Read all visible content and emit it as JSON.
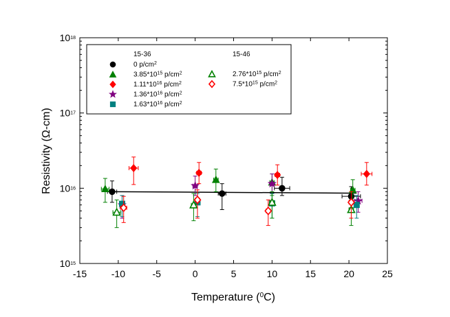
{
  "chart_data": {
    "type": "scatter",
    "xlabel": "Temperature (0C)",
    "xlabel_parts": {
      "pre": "Temperature (",
      "sup": "0",
      "post": "C)"
    },
    "ylabel": "Resistivity (Ω-cm)",
    "xlim": [
      -15,
      25
    ],
    "ylim": [
      1000000000000000.0,
      1e+18
    ],
    "yscale": "log",
    "grid": false,
    "legend_position": "top-left",
    "x_ticks": [
      "-15",
      "-10",
      "-5",
      "0",
      "5",
      "10",
      "15",
      "20",
      "25"
    ],
    "y_ticks": [
      {
        "base": "10",
        "exp": "15"
      },
      {
        "base": "10",
        "exp": "16"
      },
      {
        "base": "10",
        "exp": "17"
      },
      {
        "base": "10",
        "exp": "18"
      }
    ],
    "legend_group_titles": [
      "15-36",
      "15-46"
    ],
    "series": [
      {
        "name": "0 p/cm2",
        "label_html": [
          "0 p/cm",
          "2",
          ""
        ],
        "group": "15-36",
        "marker": "circle",
        "filled": true,
        "color": "#000000",
        "points": [
          {
            "x": -10.8,
            "y": 9000000000000000.0,
            "xerr": 0.6,
            "ylow": 6500000000000000.0,
            "yhigh": 1.25e+16
          },
          {
            "x": 3.5,
            "y": 8500000000000000.0,
            "xerr": 0.5,
            "ylow": 5200000000000000.0,
            "yhigh": 1.15e+16
          },
          {
            "x": 11.3,
            "y": 1e+16,
            "xerr": 1.0,
            "ylow": 8000000000000000.0,
            "yhigh": 1.4e+16
          },
          {
            "x": 20.3,
            "y": 7800000000000000.0,
            "xerr": 1.2,
            "ylow": 5500000000000000.0,
            "yhigh": 1.05e+16
          }
        ]
      },
      {
        "name": "3.85*10^15 p/cm2",
        "label_html": [
          "3.85*10",
          "15",
          " p/cm",
          "2"
        ],
        "group": "15-36",
        "marker": "triangle",
        "filled": true,
        "color": "#008000",
        "points": [
          {
            "x": -11.7,
            "y": 9800000000000000.0,
            "xerr": 0.5,
            "ylow": 6500000000000000.0,
            "yhigh": 1.35e+16
          },
          {
            "x": 2.7,
            "y": 1.3e+16,
            "xerr": 0.3,
            "ylow": 9000000000000000.0,
            "yhigh": 1.8e+16
          },
          {
            "x": 10.0,
            "y": 1.2e+16,
            "xerr": 0.3,
            "ylow": 8000000000000000.0,
            "yhigh": 1.55e+16
          },
          {
            "x": 20.5,
            "y": 9500000000000000.0,
            "xerr": 0.3,
            "ylow": 6500000000000000.0,
            "yhigh": 1.3e+16
          }
        ]
      },
      {
        "name": "1.11*10^16 p/cm2",
        "label_html": [
          "1.11*10",
          "16",
          " p/cm",
          "2"
        ],
        "group": "15-36",
        "marker": "diamond",
        "filled": true,
        "color": "#ff0000",
        "points": [
          {
            "x": -8.0,
            "y": 1.85e+16,
            "xerr": 0.6,
            "ylow": 1.12e+16,
            "yhigh": 2.6e+16
          },
          {
            "x": 0.5,
            "y": 1.6e+16,
            "xerr": 0.3,
            "ylow": 1.15e+16,
            "yhigh": 2.2e+16
          },
          {
            "x": 10.7,
            "y": 1.5e+16,
            "xerr": 0.3,
            "ylow": 1.1e+16,
            "yhigh": 2.05e+16
          },
          {
            "x": 22.3,
            "y": 1.55e+16,
            "xerr": 0.7,
            "ylow": 1.1e+16,
            "yhigh": 2.2e+16
          }
        ]
      },
      {
        "name": "1.36*10^16 p/cm2",
        "label_html": [
          "1.36*10",
          "16",
          " p/cm",
          "2"
        ],
        "group": "15-36",
        "marker": "star",
        "filled": true,
        "color": "#800080",
        "points": [
          {
            "x": -9.5,
            "y": 6000000000000000.0,
            "xerr": 0.2,
            "ylow": 4000000000000000.0,
            "yhigh": 8000000000000000.0
          },
          {
            "x": 0.0,
            "y": 1.08e+16,
            "xerr": 0.3,
            "ylow": 8000000000000000.0,
            "yhigh": 1.45e+16
          },
          {
            "x": 10.0,
            "y": 1.15e+16,
            "xerr": 0.3,
            "ylow": 8500000000000000.0,
            "yhigh": 1.55e+16
          },
          {
            "x": 21.2,
            "y": 6800000000000000.0,
            "xerr": 0.5,
            "ylow": 4800000000000000.0,
            "yhigh": 9000000000000000.0
          }
        ]
      },
      {
        "name": "1.63*10^16 p/cm2",
        "label_html": [
          "1.63*10",
          "16",
          " p/cm",
          "2"
        ],
        "group": "15-36",
        "marker": "square",
        "filled": true,
        "color": "#008080",
        "points": [
          {
            "x": -9.5,
            "y": 6200000000000000.0,
            "xerr": 0.2,
            "ylow": 4200000000000000.0,
            "yhigh": 8000000000000000.0
          },
          {
            "x": 0.3,
            "y": 6500000000000000.0,
            "xerr": 0.2,
            "ylow": 4200000000000000.0,
            "yhigh": 8500000000000000.0
          },
          {
            "x": 10.0,
            "y": 6300000000000000.0,
            "xerr": 0.2,
            "ylow": 4000000000000000.0,
            "yhigh": 8500000000000000.0
          },
          {
            "x": 21.0,
            "y": 6000000000000000.0,
            "xerr": 0.3,
            "ylow": 4000000000000000.0,
            "yhigh": 8000000000000000.0
          }
        ]
      },
      {
        "name": "2.76*10^15 p/cm2",
        "label_html": [
          "2.76*10",
          "15",
          " p/cm",
          "2"
        ],
        "group": "15-46",
        "marker": "triangle",
        "filled": false,
        "color": "#008000",
        "points": [
          {
            "x": -10.2,
            "y": 4800000000000000.0,
            "xerr": 0.5,
            "ylow": 3000000000000000.0,
            "yhigh": 7000000000000000.0
          },
          {
            "x": -0.2,
            "y": 6000000000000000.0,
            "xerr": 0.3,
            "ylow": 3700000000000000.0,
            "yhigh": 8500000000000000.0
          },
          {
            "x": 10.0,
            "y": 6500000000000000.0,
            "xerr": 0.3,
            "ylow": 4000000000000000.0,
            "yhigh": 9000000000000000.0
          },
          {
            "x": 20.3,
            "y": 5200000000000000.0,
            "xerr": 0.3,
            "ylow": 3200000000000000.0,
            "yhigh": 7000000000000000.0
          }
        ]
      },
      {
        "name": "7.5*10^15 p/cm2",
        "label_html": [
          "7.5*10",
          "15",
          " p/cm",
          "2"
        ],
        "group": "15-46",
        "marker": "diamond",
        "filled": false,
        "color": "#ff0000",
        "points": [
          {
            "x": -9.3,
            "y": 5500000000000000.0,
            "xerr": 0.4,
            "ylow": 3500000000000000.0,
            "yhigh": 7800000000000000.0
          },
          {
            "x": 0.3,
            "y": 7000000000000000.0,
            "xerr": 0.3,
            "ylow": 4000000000000000.0,
            "yhigh": 9500000000000000.0
          },
          {
            "x": 9.5,
            "y": 5000000000000000.0,
            "xerr": 0.3,
            "ylow": 3200000000000000.0,
            "yhigh": 7000000000000000.0
          },
          {
            "x": 20.3,
            "y": 6500000000000000.0,
            "xerr": 0.3,
            "ylow": 4000000000000000.0,
            "yhigh": 9000000000000000.0
          }
        ]
      }
    ],
    "fit_line": {
      "x": [
        -11,
        21
      ],
      "y": [
        9000000000000000.0,
        8600000000000000.0
      ],
      "color": "#000000"
    }
  }
}
